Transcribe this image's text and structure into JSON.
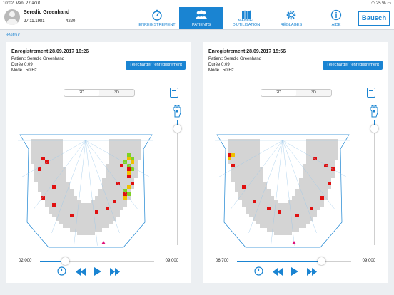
{
  "status": {
    "time": "10:02",
    "date": "Ven. 27 août",
    "battery": "25 %"
  },
  "patient": {
    "name": "Seredic Greenhand",
    "dob": "27.11.1981",
    "id": "4220"
  },
  "nav": [
    {
      "label": "ENREGISTREMENT",
      "icon": "stopwatch-icon"
    },
    {
      "label": "PATIENTS",
      "icon": "people-icon"
    },
    {
      "label": "MANUEL D'UTILISATION",
      "icon": "map-book-icon"
    },
    {
      "label": "RÉGLAGES",
      "icon": "gear-icon"
    },
    {
      "label": "AIDE",
      "icon": "info-icon"
    }
  ],
  "logo": "Bausch",
  "back_label": "Retour",
  "panels": [
    {
      "title": "Enregistrement 28.09.2017 16:26",
      "patient_line": "Patient:  Seredic Greenhand",
      "duration_line": "Durée     0:09",
      "mode_line": "Mode :   50 Hz",
      "download_label": "Télécharger l'enregistrement",
      "view_2d": "2D",
      "view_3d": "3D",
      "time_start": "02:000",
      "time_end": "09:000",
      "progress": 0.22,
      "vertical_level": 0.06
    },
    {
      "title": "Enregistrement 28.09.2017 15:56",
      "patient_line": "Patient:  Seredic Greenhand",
      "duration_line": "Durée     0:09",
      "mode_line": "Mode :   50 Hz",
      "download_label": "Télécharger l'enregistrement",
      "view_2d": "2D",
      "view_3d": "3D",
      "time_start": "06:700",
      "time_end": "09:000",
      "progress": 0.74,
      "vertical_level": 0.06
    }
  ],
  "colors": {
    "accent": "#1a84d2",
    "hotspot": "#e01010",
    "mid": "#f0c000",
    "low": "#7ed321",
    "marker": "#e0107a"
  }
}
